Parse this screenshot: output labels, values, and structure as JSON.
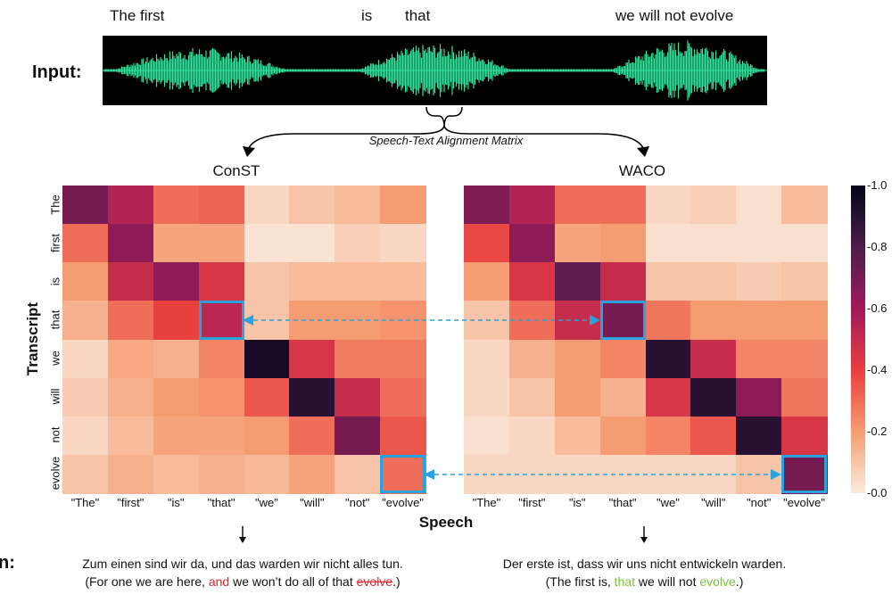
{
  "waveform": {
    "words": [
      {
        "text": "The first",
        "x": 123
      },
      {
        "text": "is",
        "x": 405
      },
      {
        "text": "that",
        "x": 454
      },
      {
        "text": "we will not evolve",
        "x": 690
      }
    ]
  },
  "input_label": "Input:",
  "alignment_caption": "Speech-Text Alignment Matrix",
  "matrices": [
    {
      "title": "ConST",
      "values": [
        [
          0.7,
          0.55,
          0.3,
          0.32,
          0.05,
          0.1,
          0.12,
          0.2
        ],
        [
          0.3,
          0.65,
          0.18,
          0.18,
          0.02,
          0.02,
          0.07,
          0.05
        ],
        [
          0.2,
          0.5,
          0.65,
          0.45,
          0.1,
          0.12,
          0.12,
          0.12
        ],
        [
          0.15,
          0.3,
          0.4,
          0.53,
          0.1,
          0.2,
          0.2,
          0.22
        ],
        [
          0.05,
          0.17,
          0.15,
          0.25,
          0.95,
          0.45,
          0.27,
          0.27
        ],
        [
          0.08,
          0.15,
          0.2,
          0.22,
          0.35,
          0.9,
          0.5,
          0.3
        ],
        [
          0.05,
          0.12,
          0.18,
          0.18,
          0.2,
          0.3,
          0.7,
          0.35
        ],
        [
          0.1,
          0.15,
          0.12,
          0.15,
          0.13,
          0.18,
          0.1,
          0.3
        ]
      ],
      "highlights": [
        [
          3,
          3
        ],
        [
          7,
          7
        ]
      ]
    },
    {
      "title": "WACO",
      "values": [
        [
          0.68,
          0.55,
          0.3,
          0.3,
          0.05,
          0.07,
          0.03,
          0.12
        ],
        [
          0.38,
          0.65,
          0.18,
          0.2,
          0.03,
          0.03,
          0.03,
          0.03
        ],
        [
          0.2,
          0.45,
          0.75,
          0.5,
          0.1,
          0.1,
          0.08,
          0.1
        ],
        [
          0.1,
          0.3,
          0.5,
          0.7,
          0.28,
          0.2,
          0.2,
          0.2
        ],
        [
          0.05,
          0.15,
          0.2,
          0.25,
          0.9,
          0.5,
          0.25,
          0.25
        ],
        [
          0.05,
          0.1,
          0.2,
          0.15,
          0.45,
          0.9,
          0.65,
          0.28
        ],
        [
          0.03,
          0.05,
          0.12,
          0.2,
          0.25,
          0.35,
          0.9,
          0.45
        ],
        [
          0.05,
          0.05,
          0.05,
          0.05,
          0.05,
          0.05,
          0.1,
          0.7
        ]
      ],
      "highlights": [
        [
          3,
          3
        ],
        [
          7,
          7
        ]
      ]
    }
  ],
  "x_ticks": [
    "\"The\"",
    "\"first\"",
    "\"is\"",
    "\"that\"",
    "\"we\"",
    "\"will\"",
    "\"not\"",
    "\"evolve\""
  ],
  "y_ticks": [
    "The",
    "first",
    "is",
    "that",
    "we",
    "will",
    "not",
    "evolve"
  ],
  "x_axis_title": "Speech",
  "y_axis_title": "Transcript",
  "colorbar": {
    "ticks": [
      "1.0",
      "0.8",
      "0.6",
      "0.4",
      "0.2",
      "0.0"
    ],
    "values": [
      1.0,
      0.8,
      0.6,
      0.4,
      0.2,
      0.0
    ]
  },
  "translation_label": "n:",
  "translations": [
    {
      "de": "Zum einen sind wir da, und das warden wir nicht alles tun.",
      "en_prefix": "(For one we are here, ",
      "en_red": "and",
      "en_mid": " we won’t do all of that ",
      "en_strike": "evolve",
      "en_suffix": ".)"
    },
    {
      "de": "Der erste ist, dass wir uns nicht entwickeln warden.",
      "en_prefix": "(The first is, ",
      "en_green": "that",
      "en_mid": " we will not ",
      "en_green2": "evolve",
      "en_suffix": ".)"
    }
  ]
}
